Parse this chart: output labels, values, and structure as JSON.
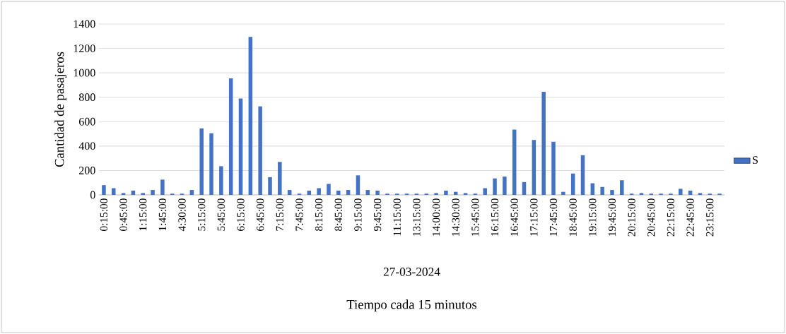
{
  "chart_data": {
    "type": "bar",
    "xlabel": "Tiempo cada 15 minutos",
    "ylabel": "Cantidad de pasajeros",
    "annotations": [
      "27-03-2024"
    ],
    "categories": [
      "0:15:00",
      null,
      "0:45:00",
      null,
      "1:15:00",
      null,
      "1:45:00",
      null,
      "4:30:00",
      null,
      "5:15:00",
      null,
      "5:45:00",
      null,
      "6:15:00",
      null,
      "6:45:00",
      null,
      "7:15:00",
      null,
      "7:45:00",
      null,
      "8:15:00",
      null,
      "8:45:00",
      null,
      "9:15:00",
      null,
      "9:45:00",
      null,
      "11:15:00",
      null,
      "13:15:00",
      null,
      "14:00:00",
      null,
      "14:30:00",
      null,
      "15:45:00",
      null,
      "16:15:00",
      null,
      "16:45:00",
      null,
      "17:15:00",
      null,
      "17:45:00",
      null,
      "18:45:00",
      null,
      "19:15:00",
      null,
      "19:45:00",
      null,
      "20:15:00",
      null,
      "20:45:00",
      null,
      "22:15:00",
      null,
      "22:45:00",
      null,
      "23:15:00",
      null
    ],
    "series": [
      {
        "name": "S",
        "color": "#4472c4",
        "values": [
          80,
          55,
          15,
          35,
          15,
          40,
          125,
          10,
          10,
          40,
          545,
          505,
          235,
          955,
          790,
          1295,
          725,
          145,
          270,
          40,
          10,
          35,
          55,
          90,
          35,
          40,
          160,
          40,
          35,
          10,
          10,
          10,
          10,
          10,
          15,
          35,
          25,
          15,
          10,
          55,
          135,
          150,
          535,
          105,
          450,
          845,
          435,
          25,
          175,
          325,
          95,
          65,
          40,
          120,
          10,
          15,
          10,
          10,
          10,
          50,
          35,
          15,
          10,
          10
        ]
      }
    ],
    "ylim": [
      0,
      1400
    ],
    "yticks": [
      0,
      200,
      400,
      600,
      800,
      1000,
      1200,
      1400
    ],
    "grid": "y",
    "legend": "right"
  }
}
